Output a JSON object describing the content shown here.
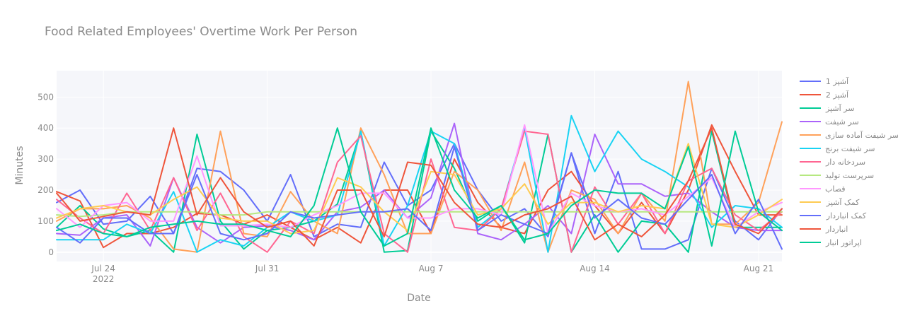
{
  "chart_data": {
    "type": "line",
    "title": "Food Related Employees' Overtime Work Per Person",
    "xlabel": "Date",
    "ylabel": "Minutes",
    "x_start": "2022-07-22",
    "x_step_days": 1,
    "xlim": [
      "2022-07-22",
      "2022-08-22"
    ],
    "ylim": [
      -30,
      585
    ],
    "y_ticks": [
      0,
      100,
      200,
      300,
      400,
      500
    ],
    "x_ticks": [
      {
        "date": "2022-07-24",
        "label": "Jul 24",
        "sublabel": "2022"
      },
      {
        "date": "2022-07-31",
        "label": "Jul 31",
        "sublabel": ""
      },
      {
        "date": "2022-08-07",
        "label": "Aug 7",
        "sublabel": ""
      },
      {
        "date": "2022-08-14",
        "label": "Aug 14",
        "sublabel": ""
      },
      {
        "date": "2022-08-21",
        "label": "Aug 21",
        "sublabel": ""
      }
    ],
    "grid": true,
    "plot_background": "#f5f6fa",
    "legend_position": "right",
    "series": [
      {
        "name": "آشپز 1",
        "color": "#636efa",
        "values": [
          160,
          200,
          90,
          100,
          180,
          60,
          270,
          260,
          200,
          100,
          250,
          50,
          90,
          80,
          290,
          150,
          200,
          350,
          200,
          100,
          140,
          50,
          320,
          60,
          260,
          10,
          10,
          40,
          270,
          100,
          40,
          140
        ]
      },
      {
        "name": "آشپز 2",
        "color": "#ef553b",
        "values": [
          195,
          165,
          15,
          60,
          60,
          80,
          125,
          120,
          90,
          120,
          80,
          40,
          80,
          30,
          200,
          200,
          60,
          300,
          160,
          80,
          60,
          200,
          260,
          150,
          60,
          160,
          60,
          200,
          410,
          260,
          120,
          120
        ]
      },
      {
        "name": "سر آشپز",
        "color": "#00cc96",
        "values": [
          80,
          150,
          75,
          50,
          70,
          0,
          380,
          100,
          10,
          70,
          80,
          100,
          155,
          390,
          0,
          5,
          390,
          270,
          100,
          150,
          30,
          380,
          0,
          120,
          0,
          100,
          90,
          0,
          390,
          80,
          80,
          80
        ]
      },
      {
        "name": "سر شیفت",
        "color": "#ab63fa",
        "values": [
          60,
          55,
          110,
          120,
          20,
          240,
          80,
          30,
          80,
          85,
          70,
          40,
          130,
          145,
          200,
          110,
          175,
          415,
          60,
          40,
          90,
          150,
          60,
          380,
          220,
          220,
          180,
          190,
          130,
          80,
          70,
          70
        ]
      },
      {
        "name": "سر شیفت آماده سازی",
        "color": "#ffa15a",
        "values": [
          100,
          140,
          140,
          150,
          110,
          10,
          0,
          390,
          60,
          50,
          195,
          100,
          60,
          400,
          250,
          60,
          60,
          260,
          200,
          70,
          290,
          0,
          200,
          170,
          60,
          190,
          100,
          550,
          90,
          90,
          160,
          420
        ]
      },
      {
        "name": "سر شیفت برنج",
        "color": "#19d3f3",
        "values": [
          40,
          40,
          40,
          90,
          60,
          195,
          0,
          40,
          20,
          80,
          130,
          100,
          120,
          390,
          20,
          150,
          390,
          350,
          80,
          140,
          400,
          0,
          440,
          260,
          390,
          300,
          260,
          210,
          80,
          150,
          140,
          80
        ]
      },
      {
        "name": "سردخانه دار",
        "color": "#ff6692",
        "values": [
          170,
          110,
          60,
          190,
          70,
          240,
          70,
          190,
          50,
          0,
          100,
          60,
          290,
          375,
          60,
          0,
          300,
          80,
          70,
          140,
          390,
          380,
          0,
          210,
          90,
          190,
          60,
          230,
          270,
          120,
          70,
          130
        ]
      },
      {
        "name": "سرپرست تولید",
        "color": "#b6e880",
        "values": [
          120,
          115,
          120,
          130,
          130,
          130,
          130,
          120,
          120,
          130,
          130,
          130,
          130,
          130,
          130,
          130,
          130,
          130,
          130,
          130,
          130,
          130,
          130,
          130,
          130,
          130,
          130,
          130,
          130,
          130,
          130,
          130
        ]
      },
      {
        "name": "قصاب",
        "color": "#ff97ff",
        "values": [
          140,
          80,
          150,
          160,
          100,
          100,
          310,
          85,
          85,
          90,
          80,
          120,
          150,
          190,
          190,
          110,
          110,
          140,
          140,
          120,
          410,
          60,
          190,
          150,
          130,
          140,
          120,
          180,
          240,
          80,
          130,
          160
        ]
      },
      {
        "name": "کمک آشپز",
        "color": "#fecb52",
        "values": [
          110,
          140,
          150,
          130,
          120,
          170,
          210,
          110,
          100,
          100,
          60,
          70,
          240,
          210,
          130,
          70,
          260,
          250,
          120,
          140,
          220,
          90,
          160,
          160,
          130,
          150,
          140,
          350,
          90,
          80,
          120,
          170
        ]
      },
      {
        "name": "کمک انباردار",
        "color": "#636efa",
        "values": [
          80,
          30,
          110,
          110,
          60,
          60,
          250,
          60,
          40,
          60,
          130,
          110,
          120,
          130,
          130,
          140,
          70,
          340,
          70,
          120,
          90,
          60,
          320,
          110,
          170,
          110,
          90,
          170,
          250,
          60,
          170,
          10
        ]
      },
      {
        "name": "انباردار",
        "color": "#ef553b",
        "values": [
          190,
          100,
          115,
          130,
          120,
          400,
          120,
          240,
          130,
          80,
          100,
          20,
          200,
          200,
          50,
          290,
          280,
          160,
          90,
          80,
          120,
          140,
          180,
          40,
          90,
          50,
          120,
          230,
          400,
          90,
          60,
          140
        ]
      },
      {
        "name": "اپراتور انبار",
        "color": "#00cc96",
        "values": [
          70,
          90,
          60,
          50,
          80,
          90,
          100,
          90,
          90,
          70,
          50,
          150,
          400,
          130,
          20,
          60,
          400,
          200,
          110,
          150,
          40,
          60,
          150,
          200,
          190,
          190,
          140,
          340,
          20,
          390,
          130,
          70
        ]
      }
    ]
  }
}
